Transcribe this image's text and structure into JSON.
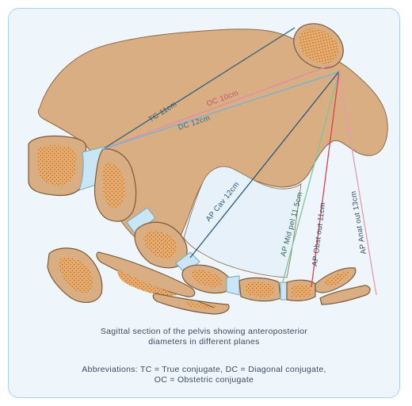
{
  "figure": {
    "labels": {
      "tc": "TC 11cm",
      "oc": "OC 10cm",
      "dc": "DC 12cm",
      "ap_cav": "AP Cav 12cm",
      "ap_mid": "AP Mid pel 11.5cm",
      "ap_obst": "AP Obst out 11cm",
      "ap_anat": "AP Anat out 13cm"
    },
    "colors": {
      "bone": "#d9ae82",
      "bone_outline": "#7a5a3c",
      "marrow": "#e2a868",
      "marrow_dots": "#b8793c",
      "disc": "#c8e6f5",
      "tc": "#2e5f7a",
      "oc": "#e58aa9",
      "dc": "#6fb3dc",
      "ap_cav": "#27557a",
      "ap_mid": "#79c79a",
      "ap_obst": "#d94050",
      "ap_anat": "#e79aae"
    }
  },
  "caption": {
    "title_line1": "Sagittal section of the pelvis showing anteroposterior",
    "title_line2": "diameters in different planes",
    "abbrev_line1": "Abbreviations: TC = True conjugate, DC = Diagonal conjugate,",
    "abbrev_line2": "OC = Obstetric conjugate"
  }
}
